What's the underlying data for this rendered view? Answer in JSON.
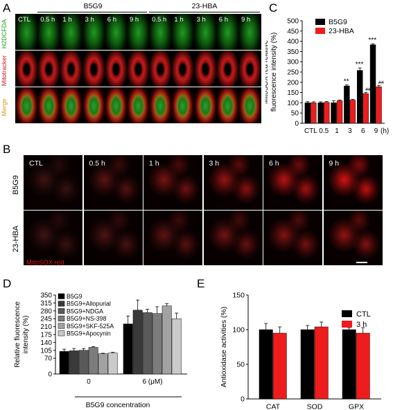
{
  "panels": {
    "a": "A",
    "b": "B",
    "c": "C",
    "d": "D",
    "e": "E"
  },
  "panel_a": {
    "group_b5g9": "B5G9",
    "group_23hba": "23-HBA",
    "columns": [
      "CTL",
      "0.5 h",
      "1 h",
      "3 h",
      "6 h",
      "9 h",
      "0.5 h",
      "1 h",
      "3 h",
      "6 h",
      "9 h"
    ],
    "row_labels": [
      "H2DCFDA",
      "Mitotracker",
      "Merge"
    ],
    "row_colors": [
      "#1aa51a",
      "#d11a1a",
      "#d89a1a"
    ]
  },
  "panel_b": {
    "columns": [
      "CTL",
      "0.5 h",
      "1 h",
      "3 h",
      "6 h",
      "9 h"
    ],
    "row_labels": [
      "B5G9",
      "23-HBA"
    ],
    "stain_label": "MitoSOX red"
  },
  "chart_data": [
    {
      "id": "C",
      "type": "bar",
      "ylabel": "MitoSOX red relative fluorescence intensity (%)",
      "xlabel": "",
      "x_unit": "(h)",
      "categories": [
        "CTL",
        "0.5",
        "1",
        "3",
        "6",
        "9"
      ],
      "ylim": [
        0,
        500
      ],
      "yticks": [
        0,
        50,
        100,
        150,
        200,
        250,
        300,
        350,
        400,
        450,
        500
      ],
      "legend_position": "top-left",
      "series": [
        {
          "name": "B5G9",
          "color": "#000000",
          "values": [
            100,
            100,
            100,
            182,
            258,
            383
          ],
          "errors": [
            6,
            5,
            10,
            5,
            12,
            5
          ]
        },
        {
          "name": "23-HBA",
          "color": "#ee1c1c",
          "values": [
            100,
            102,
            110,
            113,
            145,
            178
          ],
          "errors": [
            5,
            4,
            4,
            4,
            5,
            6
          ]
        }
      ],
      "annotations": [
        {
          "category": "3",
          "series": "B5G9",
          "text": "**"
        },
        {
          "category": "6",
          "series": "B5G9",
          "text": "***"
        },
        {
          "category": "9",
          "series": "B5G9",
          "text": "***"
        },
        {
          "category": "6",
          "series": "23-HBA",
          "text": "##"
        },
        {
          "category": "9",
          "series": "23-HBA",
          "text": "##"
        }
      ]
    },
    {
      "id": "D",
      "type": "bar",
      "ylabel": "Relative fluorescence intensity (%)",
      "xlabel": "B5G9 concentration",
      "categories": [
        "0",
        "6 (μM)"
      ],
      "ylim": [
        0,
        350
      ],
      "yticks": [
        0,
        70,
        105,
        140,
        175,
        210,
        245,
        280,
        315,
        350
      ],
      "legend_position": "top-left",
      "series": [
        {
          "name": "B5G9",
          "color": "#000000",
          "values": [
            100,
            222
          ],
          "errors": [
            10,
            35
          ]
        },
        {
          "name": "B5G9+Allopurial",
          "color": "#3a3a3a",
          "values": [
            103,
            283
          ],
          "errors": [
            10,
            45
          ]
        },
        {
          "name": "B5G9+NDGA",
          "color": "#5a5a5a",
          "values": [
            105,
            272
          ],
          "errors": [
            8,
            15
          ]
        },
        {
          "name": "B5G9+NS-398",
          "color": "#7c7c7c",
          "values": [
            118,
            268
          ],
          "errors": [
            3,
            30
          ]
        },
        {
          "name": "B5G9+SKF-525A",
          "color": "#a2a2a2",
          "values": [
            90,
            302
          ],
          "errors": [
            2,
            10
          ]
        },
        {
          "name": "B5G9+Apocynin",
          "color": "#cacaca",
          "values": [
            93,
            245
          ],
          "errors": [
            3,
            25
          ]
        }
      ]
    },
    {
      "id": "E",
      "type": "bar",
      "ylabel": "Antioxidase activities (%)",
      "xlabel": "",
      "categories": [
        "CAT",
        "SOD",
        "GPX"
      ],
      "ylim": [
        0,
        150
      ],
      "yticks": [
        0,
        50,
        100,
        150
      ],
      "legend_position": "top-right",
      "series": [
        {
          "name": "CTL",
          "color": "#000000",
          "values": [
            100,
            100,
            100
          ],
          "errors": [
            9,
            6,
            3
          ]
        },
        {
          "name": "3 h",
          "color": "#ee1c1c",
          "values": [
            95,
            104,
            95
          ],
          "errors": [
            9,
            7,
            8
          ]
        }
      ]
    }
  ]
}
